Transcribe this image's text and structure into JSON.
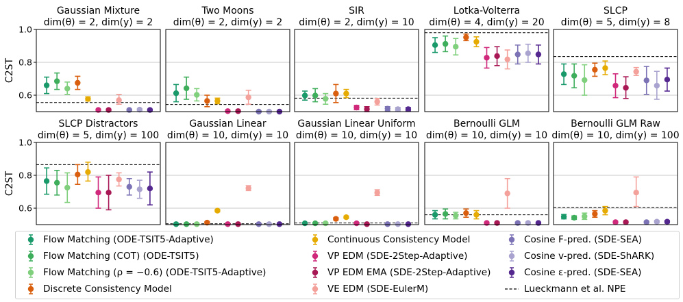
{
  "y_axis_label": "C2ST",
  "baseline": {
    "name": "Lueckmann et al. NPE"
  },
  "methods": [
    {
      "name": "Flow Matching (ODE-TSIT5-Adaptive)",
      "color": "#1a9a6b"
    },
    {
      "name": "Flow Matching (COT) (ODE-TSIT5)",
      "color": "#3fae5c"
    },
    {
      "name": "Flow Matching (ρ = −0.6) (ODE-TSIT5-Adaptive)",
      "color": "#7fcf7c"
    },
    {
      "name": "Discrete Consistency Model",
      "color": "#d95f0e"
    },
    {
      "name": "Continuous Consistency Model",
      "color": "#e6ab02"
    },
    {
      "name": "VP EDM (SDE-2Step-Adaptive)",
      "color": "#d0287a"
    },
    {
      "name": "VP EDM EMA (SDE-2Step-Adaptive)",
      "color": "#a81854"
    },
    {
      "name": "VE EDM (SDE-EulerM)",
      "color": "#f4a09b"
    },
    {
      "name": "Cosine F-pred. (SDE-SEA)",
      "color": "#7b73b5"
    },
    {
      "name": "Cosine v-pred. (SDE-ShARK)",
      "color": "#a9a3cf"
    },
    {
      "name": "Cosine ε-pred. (SDE-SEA)",
      "color": "#54288f"
    }
  ],
  "chart_data": [
    {
      "type": "scatter",
      "title": "Gaussian Mixture",
      "subtitle": "dim(θ) = 2, dim(y) = 2",
      "ylim": [
        0.5,
        1.0
      ],
      "yticks": [
        0.6,
        0.8,
        1.0
      ],
      "baseline": 0.555,
      "values": [
        [
          0.66,
          0.61,
          0.71
        ],
        [
          0.685,
          0.635,
          0.735
        ],
        [
          0.64,
          0.605,
          0.68
        ],
        [
          0.675,
          0.635,
          0.715
        ],
        [
          0.577,
          0.565,
          0.59
        ],
        [
          0.51,
          0.505,
          0.515
        ],
        [
          0.51,
          0.505,
          0.515
        ],
        [
          0.57,
          0.545,
          0.605
        ],
        [
          0.51,
          0.505,
          0.515
        ],
        [
          0.512,
          0.506,
          0.518
        ],
        [
          0.51,
          0.505,
          0.515
        ]
      ]
    },
    {
      "type": "scatter",
      "title": "Two Moons",
      "subtitle": "dim(θ) = 2, dim(y) = 2",
      "ylim": [
        0.5,
        1.0
      ],
      "yticks": [
        0.6,
        0.8,
        1.0
      ],
      "baseline": 0.543,
      "values": [
        [
          0.612,
          0.56,
          0.665
        ],
        [
          0.642,
          0.575,
          0.71
        ],
        [
          0.602,
          0.565,
          0.64
        ],
        [
          0.565,
          0.53,
          0.6
        ],
        [
          0.565,
          0.548,
          0.582
        ],
        [
          0.503,
          0.498,
          0.508
        ],
        [
          0.503,
          0.498,
          0.508
        ],
        [
          0.587,
          0.545,
          0.63
        ],
        [
          0.5,
          0.496,
          0.505
        ],
        [
          0.5,
          0.496,
          0.505
        ],
        [
          0.5,
          0.496,
          0.505
        ]
      ]
    },
    {
      "type": "scatter",
      "title": "SIR",
      "subtitle": "dim(θ) = 2, dim(y) = 10",
      "ylim": [
        0.5,
        1.0
      ],
      "yticks": [
        0.6,
        0.8,
        1.0
      ],
      "baseline": 0.582,
      "values": [
        [
          0.598,
          0.57,
          0.625
        ],
        [
          0.598,
          0.56,
          0.64
        ],
        [
          0.578,
          0.545,
          0.61
        ],
        [
          0.61,
          0.555,
          0.665
        ],
        [
          0.61,
          0.585,
          0.635
        ],
        [
          0.525,
          0.512,
          0.538
        ],
        [
          0.515,
          0.5,
          0.53
        ],
        [
          0.56,
          0.54,
          0.58
        ],
        [
          0.518,
          0.505,
          0.53
        ],
        [
          0.515,
          0.505,
          0.525
        ],
        [
          0.515,
          0.505,
          0.525
        ]
      ]
    },
    {
      "type": "scatter",
      "title": "Lotka-Volterra",
      "subtitle": "dim(θ) = 4, dim(y) = 20",
      "ylim": [
        0.5,
        1.0
      ],
      "yticks": [
        0.6,
        0.8,
        1.0
      ],
      "baseline": 0.98,
      "values": [
        [
          0.905,
          0.86,
          0.95
        ],
        [
          0.912,
          0.865,
          0.96
        ],
        [
          0.895,
          0.845,
          0.945
        ],
        [
          0.952,
          0.932,
          0.972
        ],
        [
          0.925,
          0.895,
          0.955
        ],
        [
          0.828,
          0.765,
          0.89
        ],
        [
          0.838,
          0.78,
          0.895
        ],
        [
          0.818,
          0.76,
          0.875
        ],
        [
          0.848,
          0.79,
          0.905
        ],
        [
          0.855,
          0.8,
          0.91
        ],
        [
          0.848,
          0.79,
          0.905
        ]
      ]
    },
    {
      "type": "scatter",
      "title": "SLCP",
      "subtitle": "dim(θ) = 5, dim(y) = 8",
      "ylim": [
        0.5,
        1.0
      ],
      "yticks": [
        0.6,
        0.8,
        1.0
      ],
      "baseline": 0.835,
      "values": [
        [
          0.728,
          0.665,
          0.79
        ],
        [
          0.718,
          0.645,
          0.79
        ],
        [
          0.692,
          0.6,
          0.785
        ],
        [
          0.755,
          0.715,
          0.795
        ],
        [
          0.765,
          0.725,
          0.808
        ],
        [
          0.658,
          0.585,
          0.73
        ],
        [
          0.645,
          0.58,
          0.712
        ],
        [
          0.743,
          0.72,
          0.768
        ],
        [
          0.69,
          0.605,
          0.775
        ],
        [
          0.658,
          0.575,
          0.745
        ],
        [
          0.695,
          0.625,
          0.765
        ]
      ]
    },
    {
      "type": "scatter",
      "title": "SLCP Distractors",
      "subtitle": "dim(θ) = 5, dim(y) = 100",
      "ylim": [
        0.5,
        1.0
      ],
      "yticks": [
        0.6,
        0.8,
        1.0
      ],
      "baseline": 0.865,
      "values": [
        [
          0.765,
          0.685,
          0.845
        ],
        [
          0.755,
          0.68,
          0.83
        ],
        [
          0.725,
          0.635,
          0.815
        ],
        [
          0.805,
          0.745,
          0.865
        ],
        [
          0.82,
          0.765,
          0.88
        ],
        [
          0.695,
          0.6,
          0.79
        ],
        [
          0.695,
          0.59,
          0.8
        ],
        [
          0.775,
          0.735,
          0.815
        ],
        [
          0.73,
          0.68,
          0.78
        ],
        [
          0.715,
          0.66,
          0.77
        ],
        [
          0.72,
          0.62,
          0.82
        ]
      ]
    },
    {
      "type": "scatter",
      "title": "Gaussian Linear",
      "subtitle": "dim(θ) = 10, dim(y) = 10",
      "ylim": [
        0.5,
        1.0
      ],
      "yticks": [
        0.6,
        0.8,
        1.0
      ],
      "baseline": 0.505,
      "values": [
        [
          0.503,
          0.5,
          0.506
        ],
        [
          0.503,
          0.5,
          0.506
        ],
        [
          0.503,
          0.5,
          0.506
        ],
        [
          0.512,
          0.505,
          0.518
        ],
        [
          0.585,
          0.578,
          0.592
        ],
        [
          0.503,
          0.5,
          0.506
        ],
        [
          0.503,
          0.5,
          0.506
        ],
        [
          0.722,
          0.707,
          0.737
        ],
        [
          0.503,
          0.5,
          0.506
        ],
        [
          0.503,
          0.5,
          0.506
        ],
        [
          0.503,
          0.5,
          0.506
        ]
      ]
    },
    {
      "type": "scatter",
      "title": "Gaussian Linear Uniform",
      "subtitle": "dim(θ) = 10, dim(y) = 10",
      "ylim": [
        0.5,
        1.0
      ],
      "yticks": [
        0.6,
        0.8,
        1.0
      ],
      "baseline": 0.51,
      "values": [
        [
          0.508,
          0.503,
          0.512
        ],
        [
          0.508,
          0.503,
          0.512
        ],
        [
          0.508,
          0.503,
          0.512
        ],
        [
          0.535,
          0.528,
          0.542
        ],
        [
          0.545,
          0.538,
          0.552
        ],
        [
          0.508,
          0.503,
          0.512
        ],
        [
          0.503,
          0.5,
          0.506
        ],
        [
          0.695,
          0.678,
          0.712
        ],
        [
          0.503,
          0.5,
          0.506
        ],
        [
          0.503,
          0.5,
          0.506
        ],
        [
          0.503,
          0.5,
          0.506
        ]
      ]
    },
    {
      "type": "scatter",
      "title": "Bernoulli GLM",
      "subtitle": "dim(θ) = 10, dim(y) = 10",
      "ylim": [
        0.5,
        1.0
      ],
      "yticks": [
        0.6,
        0.8,
        1.0
      ],
      "baseline": 0.56,
      "values": [
        [
          0.56,
          0.535,
          0.585
        ],
        [
          0.565,
          0.535,
          0.595
        ],
        [
          0.555,
          0.535,
          0.575
        ],
        [
          0.57,
          0.545,
          0.595
        ],
        [
          0.56,
          0.535,
          0.585
        ],
        [
          0.51,
          0.505,
          0.515
        ],
        [
          0.51,
          0.505,
          0.515
        ],
        [
          0.69,
          0.6,
          0.78
        ],
        [
          0.51,
          0.505,
          0.515
        ],
        [
          0.51,
          0.505,
          0.515
        ],
        [
          0.51,
          0.505,
          0.515
        ]
      ]
    },
    {
      "type": "scatter",
      "title": "Bernoulli GLM Raw",
      "subtitle": "dim(θ) = 10, dim(y) = 100",
      "ylim": [
        0.5,
        1.0
      ],
      "yticks": [
        0.6,
        0.8,
        1.0
      ],
      "baseline": 0.605,
      "values": [
        [
          0.548,
          0.535,
          0.562
        ],
        [
          0.542,
          0.532,
          0.553
        ],
        [
          0.55,
          0.532,
          0.57
        ],
        [
          0.565,
          0.545,
          0.585
        ],
        [
          0.585,
          0.56,
          0.61
        ],
        [
          0.515,
          0.51,
          0.52
        ],
        [
          0.515,
          0.51,
          0.52
        ],
        [
          0.695,
          0.61,
          0.79
        ],
        [
          0.515,
          0.51,
          0.52
        ],
        [
          0.518,
          0.51,
          0.525
        ],
        [
          0.518,
          0.51,
          0.525
        ]
      ]
    }
  ]
}
